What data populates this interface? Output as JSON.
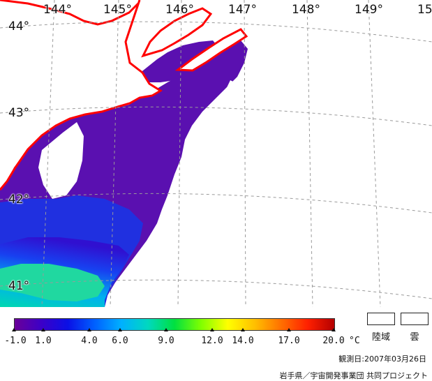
{
  "map": {
    "longitude_labels": [
      "144°",
      "145°",
      "146°",
      "147°",
      "148°",
      "149°",
      "15"
    ],
    "latitude_labels": [
      "44°",
      "43°",
      "42°",
      "41°"
    ],
    "colors": {
      "background": "#ffffff",
      "coastline": "#ff0000",
      "land": "#ffffff",
      "cloud": "#ffffff",
      "graticule": "#9a9a9a"
    }
  },
  "colorbar": {
    "tick_labels": [
      "-1.0",
      "1.0",
      "4.0",
      "6.0",
      "9.0",
      "12.0",
      "14.0",
      "17.0",
      "20.0"
    ],
    "unit": "°C",
    "colors": [
      "#6a0098",
      "#3c00c8",
      "#0a10e6",
      "#0060ff",
      "#00b0ff",
      "#00d8c0",
      "#00e040",
      "#80ff00",
      "#ffff00",
      "#ffc000",
      "#ff7000",
      "#ff2000",
      "#b40000"
    ]
  },
  "legend": {
    "land_label": "陸域",
    "cloud_label": "雲"
  },
  "observation_date": "観測日:2007年03月26日",
  "credit": "岩手県／宇宙開発事業団 共同プロジェクト"
}
